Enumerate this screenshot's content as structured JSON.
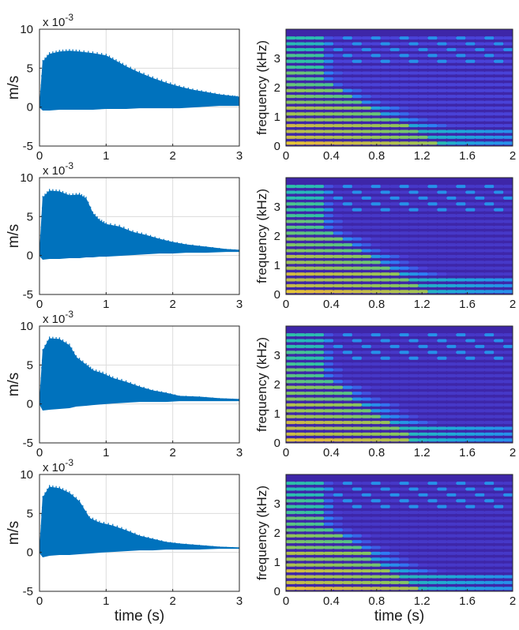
{
  "figure": {
    "waveform_panels": [
      {
        "chart_data": {
          "type": "area",
          "ylabel": "m/s",
          "xlabel": "",
          "xlim": [
            0,
            3
          ],
          "ylim": [
            -5,
            10
          ],
          "xticks": [
            "0",
            "1",
            "2",
            "3"
          ],
          "yticks": [
            "-5",
            "0",
            "5",
            "10"
          ],
          "exponent_label": "x 10",
          "exponent_power": "-3",
          "grid": true,
          "color": "#0072bd",
          "series": [
            {
              "x": [
                0,
                0.05,
                0.15,
                0.3,
                0.45,
                0.6,
                0.8,
                1.0,
                1.15,
                1.3,
                1.5,
                1.7,
                1.9,
                2.1,
                2.3,
                2.5,
                2.7,
                2.9,
                3.0
              ],
              "upper": [
                0,
                5.8,
                6.8,
                7.1,
                7.2,
                7.1,
                6.9,
                6.6,
                5.9,
                5.2,
                4.4,
                3.7,
                3.1,
                2.6,
                2.2,
                1.9,
                1.6,
                1.4,
                1.3
              ],
              "lower": [
                0,
                -0.4,
                -0.4,
                -0.3,
                -0.3,
                -0.3,
                -0.3,
                -0.2,
                -0.2,
                -0.2,
                -0.1,
                -0.1,
                -0.1,
                -0.1,
                0.0,
                0.1,
                0.2,
                0.2,
                0.2
              ]
            }
          ]
        }
      },
      {
        "chart_data": {
          "type": "area",
          "ylabel": "m/s",
          "xlabel": "",
          "xlim": [
            0,
            3
          ],
          "ylim": [
            -5,
            10
          ],
          "xticks": [
            "0",
            "1",
            "2",
            "3"
          ],
          "yticks": [
            "-5",
            "0",
            "5",
            "10"
          ],
          "exponent_label": "x 10",
          "exponent_power": "-3",
          "grid": true,
          "color": "#0072bd",
          "series": [
            {
              "x": [
                0,
                0.05,
                0.15,
                0.3,
                0.45,
                0.6,
                0.7,
                0.8,
                0.9,
                1.0,
                1.2,
                1.4,
                1.6,
                1.8,
                2.0,
                2.2,
                2.5,
                2.8,
                3.0
              ],
              "upper": [
                0,
                7.4,
                8.3,
                8.2,
                7.7,
                7.8,
                7.3,
                5.4,
                4.5,
                4.0,
                3.7,
                3.0,
                2.6,
                2.1,
                1.7,
                1.4,
                1.1,
                0.8,
                0.7
              ],
              "lower": [
                0,
                -0.5,
                -0.4,
                -0.4,
                -0.3,
                -0.3,
                -0.2,
                -0.2,
                -0.1,
                -0.1,
                0.0,
                0.1,
                0.2,
                0.3,
                0.3,
                0.4,
                0.4,
                0.5,
                0.5
              ]
            }
          ]
        }
      },
      {
        "chart_data": {
          "type": "area",
          "ylabel": "m/s",
          "xlabel": "",
          "xlim": [
            0,
            3
          ],
          "ylim": [
            -5,
            10
          ],
          "xticks": [
            "0",
            "1",
            "2",
            "3"
          ],
          "yticks": [
            "-5",
            "0",
            "5",
            "10"
          ],
          "exponent_label": "x 10",
          "exponent_power": "-3",
          "grid": true,
          "color": "#0072bd",
          "series": [
            {
              "x": [
                0,
                0.05,
                0.15,
                0.3,
                0.45,
                0.55,
                0.7,
                0.8,
                0.95,
                1.1,
                1.3,
                1.5,
                1.7,
                1.9,
                2.1,
                2.4,
                2.7,
                3.0
              ],
              "upper": [
                0,
                6.8,
                8.4,
                8.3,
                7.5,
                6.0,
                5.0,
                4.3,
                3.9,
                3.3,
                2.8,
                2.2,
                1.7,
                1.4,
                1.0,
                0.9,
                0.7,
                0.6
              ],
              "lower": [
                0,
                -0.8,
                -0.7,
                -0.6,
                -0.5,
                -0.3,
                -0.2,
                -0.1,
                0.0,
                0.1,
                0.2,
                0.3,
                0.3,
                0.3,
                0.4,
                0.4,
                0.4,
                0.4
              ]
            }
          ]
        }
      },
      {
        "chart_data": {
          "type": "area",
          "ylabel": "m/s",
          "xlabel": "time (s)",
          "xlim": [
            0,
            3
          ],
          "ylim": [
            -5,
            10
          ],
          "xticks": [
            "0",
            "1",
            "2",
            "3"
          ],
          "yticks": [
            "-5",
            "0",
            "5",
            "10"
          ],
          "exponent_label": "x 10",
          "exponent_power": "-3",
          "grid": true,
          "color": "#0072bd",
          "series": [
            {
              "x": [
                0,
                0.05,
                0.15,
                0.3,
                0.45,
                0.6,
                0.75,
                0.9,
                1.1,
                1.3,
                1.5,
                1.7,
                1.9,
                2.1,
                2.4,
                2.7,
                3.0
              ],
              "upper": [
                0,
                7.0,
                8.4,
                8.2,
                7.6,
                6.5,
                4.4,
                3.8,
                3.4,
                2.8,
                2.1,
                1.7,
                1.3,
                1.1,
                0.9,
                0.7,
                0.6
              ],
              "lower": [
                0,
                -0.6,
                -0.4,
                -0.3,
                -0.3,
                -0.2,
                -0.1,
                0.0,
                0.1,
                0.2,
                0.3,
                0.3,
                0.4,
                0.4,
                0.4,
                0.5,
                0.5
              ]
            }
          ]
        }
      }
    ],
    "spectrogram_panels": [
      {
        "chart_data": {
          "type": "heatmap",
          "ylabel": "frequency (kHz)",
          "xlabel": "",
          "xlim": [
            0,
            2
          ],
          "ylim": [
            0,
            4
          ],
          "xticks": [
            "0",
            "0.4",
            "0.8",
            "1.2",
            "1.6",
            "2"
          ],
          "yticks": [
            "0",
            "1",
            "2",
            "3"
          ],
          "colormap": [
            "#3e26a8",
            "#4a3fd6",
            "#2d7df7",
            "#1ea8d9",
            "#2ec3a5",
            "#8ec65a",
            "#e0b83e",
            "#f9fb15"
          ],
          "harmonic_spacing_khz": 0.2,
          "decay_model": {
            "onset_time_s": 1.4,
            "slope_s_per_khz": -0.22,
            "floor_level": 0.15
          }
        }
      },
      {
        "chart_data": {
          "type": "heatmap",
          "ylabel": "frequency (kHz)",
          "xlabel": "",
          "xlim": [
            0,
            2
          ],
          "ylim": [
            0,
            4
          ],
          "xticks": [
            "0",
            "0.4",
            "0.8",
            "1.2",
            "1.6",
            "2"
          ],
          "yticks": [
            "0",
            "1",
            "2",
            "3"
          ],
          "colormap": [
            "#3e26a8",
            "#4a3fd6",
            "#2d7df7",
            "#1ea8d9",
            "#2ec3a5",
            "#8ec65a",
            "#e0b83e",
            "#f9fb15"
          ],
          "harmonic_spacing_khz": 0.2,
          "decay_model": {
            "onset_time_s": 1.25,
            "slope_s_per_khz": -0.18,
            "floor_level": 0.1
          }
        }
      },
      {
        "chart_data": {
          "type": "heatmap",
          "ylabel": "frequency (kHz)",
          "xlabel": "",
          "xlim": [
            0,
            2
          ],
          "ylim": [
            0,
            4
          ],
          "xticks": [
            "0",
            "0.4",
            "0.8",
            "1.2",
            "1.6",
            "2"
          ],
          "yticks": [
            "0",
            "1",
            "2",
            "3"
          ],
          "colormap": [
            "#3e26a8",
            "#4a3fd6",
            "#2d7df7",
            "#1ea8d9",
            "#2ec3a5",
            "#8ec65a",
            "#e0b83e",
            "#f9fb15"
          ],
          "harmonic_spacing_khz": 0.2,
          "decay_model": {
            "onset_time_s": 1.15,
            "slope_s_per_khz": -0.16,
            "floor_level": 0.1
          }
        }
      },
      {
        "chart_data": {
          "type": "heatmap",
          "ylabel": "frequency (kHz)",
          "xlabel": "time (s)",
          "xlim": [
            0,
            2
          ],
          "ylim": [
            0,
            4
          ],
          "xticks": [
            "0",
            "0.4",
            "0.8",
            "1.2",
            "1.6",
            "2"
          ],
          "yticks": [
            "0",
            "1",
            "2",
            "3"
          ],
          "colormap": [
            "#3e26a8",
            "#4a3fd6",
            "#2d7df7",
            "#1ea8d9",
            "#2ec3a5",
            "#8ec65a",
            "#e0b83e",
            "#f9fb15"
          ],
          "harmonic_spacing_khz": 0.2,
          "decay_model": {
            "onset_time_s": 1.2,
            "slope_s_per_khz": -0.17,
            "floor_level": 0.1
          }
        }
      }
    ]
  }
}
